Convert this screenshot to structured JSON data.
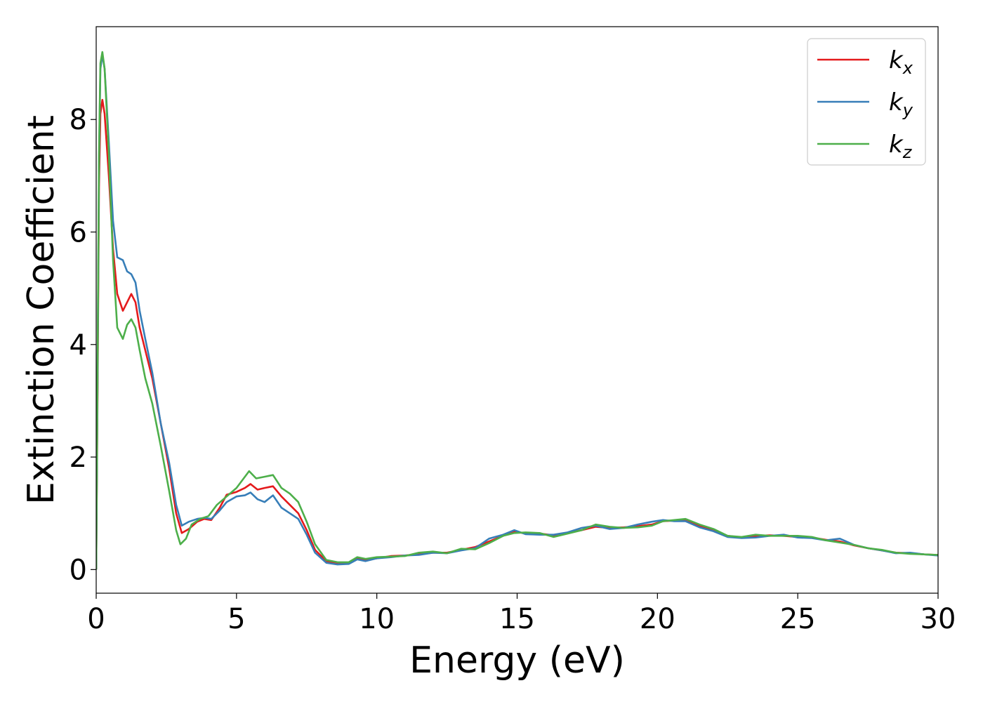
{
  "chart_data": {
    "type": "line",
    "title": "",
    "xlabel": "Energy (eV)",
    "ylabel": "Extinction Coefficient",
    "xlim": [
      0,
      30
    ],
    "ylim": [
      -0.42,
      9.65
    ],
    "xticks": [
      0,
      5,
      10,
      15,
      20,
      25,
      30
    ],
    "yticks": [
      0,
      2,
      4,
      6,
      8
    ],
    "grid": false,
    "legend_position": "top-right",
    "series": [
      {
        "name": "k",
        "subscript": "x",
        "color": "#e41a1c",
        "points": [
          [
            0,
            0
          ],
          [
            0.05,
            3.2
          ],
          [
            0.1,
            6.8
          ],
          [
            0.15,
            8.1
          ],
          [
            0.22,
            8.35
          ],
          [
            0.3,
            8.1
          ],
          [
            0.45,
            7.0
          ],
          [
            0.6,
            5.7
          ],
          [
            0.75,
            4.9
          ],
          [
            0.95,
            4.6
          ],
          [
            1.1,
            4.75
          ],
          [
            1.25,
            4.9
          ],
          [
            1.4,
            4.75
          ],
          [
            1.55,
            4.3
          ],
          [
            1.75,
            3.9
          ],
          [
            2.0,
            3.4
          ],
          [
            2.3,
            2.6
          ],
          [
            2.6,
            1.8
          ],
          [
            2.85,
            1.0
          ],
          [
            3.05,
            0.65
          ],
          [
            3.3,
            0.72
          ],
          [
            3.6,
            0.85
          ],
          [
            3.85,
            0.9
          ],
          [
            4.1,
            0.88
          ],
          [
            4.4,
            1.1
          ],
          [
            4.65,
            1.33
          ],
          [
            5.0,
            1.38
          ],
          [
            5.3,
            1.45
          ],
          [
            5.5,
            1.52
          ],
          [
            5.75,
            1.42
          ],
          [
            6.0,
            1.45
          ],
          [
            6.3,
            1.48
          ],
          [
            6.6,
            1.3
          ],
          [
            6.9,
            1.15
          ],
          [
            7.2,
            1.0
          ],
          [
            7.5,
            0.7
          ],
          [
            7.8,
            0.35
          ],
          [
            8.2,
            0.15
          ],
          [
            8.6,
            0.11
          ],
          [
            9.0,
            0.12
          ],
          [
            9.3,
            0.2
          ],
          [
            9.6,
            0.17
          ],
          [
            10.0,
            0.2
          ],
          [
            10.5,
            0.24
          ],
          [
            11.0,
            0.25
          ],
          [
            11.5,
            0.27
          ],
          [
            12.0,
            0.3
          ],
          [
            12.5,
            0.3
          ],
          [
            13.0,
            0.35
          ],
          [
            13.5,
            0.4
          ],
          [
            14.0,
            0.5
          ],
          [
            14.5,
            0.6
          ],
          [
            14.9,
            0.68
          ],
          [
            15.3,
            0.64
          ],
          [
            15.8,
            0.64
          ],
          [
            16.3,
            0.61
          ],
          [
            16.8,
            0.65
          ],
          [
            17.3,
            0.7
          ],
          [
            17.8,
            0.76
          ],
          [
            18.3,
            0.74
          ],
          [
            18.8,
            0.75
          ],
          [
            19.3,
            0.77
          ],
          [
            19.8,
            0.8
          ],
          [
            20.2,
            0.86
          ],
          [
            20.6,
            0.87
          ],
          [
            21.0,
            0.88
          ],
          [
            21.5,
            0.78
          ],
          [
            22.0,
            0.7
          ],
          [
            22.5,
            0.6
          ],
          [
            23.0,
            0.57
          ],
          [
            23.5,
            0.6
          ],
          [
            24.0,
            0.61
          ],
          [
            24.5,
            0.6
          ],
          [
            25.0,
            0.58
          ],
          [
            25.5,
            0.57
          ],
          [
            26.0,
            0.53
          ],
          [
            26.5,
            0.5
          ],
          [
            27.0,
            0.43
          ],
          [
            27.5,
            0.38
          ],
          [
            28.0,
            0.34
          ],
          [
            28.5,
            0.3
          ],
          [
            29.0,
            0.29
          ],
          [
            29.5,
            0.27
          ],
          [
            30.0,
            0.26
          ]
        ]
      },
      {
        "name": "k",
        "subscript": "y",
        "color": "#377eb8",
        "points": [
          [
            0,
            0
          ],
          [
            0.05,
            3.5
          ],
          [
            0.1,
            7.2
          ],
          [
            0.15,
            8.9
          ],
          [
            0.22,
            9.15
          ],
          [
            0.3,
            8.9
          ],
          [
            0.45,
            7.6
          ],
          [
            0.6,
            6.2
          ],
          [
            0.75,
            5.55
          ],
          [
            0.95,
            5.5
          ],
          [
            1.1,
            5.3
          ],
          [
            1.25,
            5.25
          ],
          [
            1.4,
            5.1
          ],
          [
            1.55,
            4.6
          ],
          [
            1.75,
            4.1
          ],
          [
            2.0,
            3.5
          ],
          [
            2.3,
            2.6
          ],
          [
            2.6,
            1.9
          ],
          [
            2.85,
            1.15
          ],
          [
            3.05,
            0.78
          ],
          [
            3.3,
            0.85
          ],
          [
            3.6,
            0.9
          ],
          [
            3.85,
            0.92
          ],
          [
            4.1,
            0.9
          ],
          [
            4.4,
            1.05
          ],
          [
            4.65,
            1.2
          ],
          [
            5.0,
            1.3
          ],
          [
            5.3,
            1.32
          ],
          [
            5.5,
            1.37
          ],
          [
            5.75,
            1.25
          ],
          [
            6.0,
            1.2
          ],
          [
            6.3,
            1.32
          ],
          [
            6.6,
            1.1
          ],
          [
            6.9,
            1.0
          ],
          [
            7.2,
            0.9
          ],
          [
            7.5,
            0.62
          ],
          [
            7.8,
            0.3
          ],
          [
            8.2,
            0.12
          ],
          [
            8.6,
            0.09
          ],
          [
            9.0,
            0.1
          ],
          [
            9.3,
            0.18
          ],
          [
            9.6,
            0.15
          ],
          [
            10.0,
            0.2
          ],
          [
            10.5,
            0.22
          ],
          [
            11.0,
            0.25
          ],
          [
            11.5,
            0.26
          ],
          [
            12.0,
            0.3
          ],
          [
            12.5,
            0.29
          ],
          [
            13.0,
            0.34
          ],
          [
            13.5,
            0.38
          ],
          [
            14.0,
            0.55
          ],
          [
            14.5,
            0.62
          ],
          [
            14.9,
            0.7
          ],
          [
            15.3,
            0.63
          ],
          [
            15.8,
            0.62
          ],
          [
            16.3,
            0.62
          ],
          [
            16.8,
            0.66
          ],
          [
            17.3,
            0.74
          ],
          [
            17.8,
            0.78
          ],
          [
            18.3,
            0.72
          ],
          [
            18.8,
            0.74
          ],
          [
            19.3,
            0.8
          ],
          [
            19.8,
            0.85
          ],
          [
            20.2,
            0.88
          ],
          [
            20.6,
            0.86
          ],
          [
            21.0,
            0.86
          ],
          [
            21.5,
            0.75
          ],
          [
            22.0,
            0.68
          ],
          [
            22.5,
            0.58
          ],
          [
            23.0,
            0.56
          ],
          [
            23.5,
            0.57
          ],
          [
            24.0,
            0.6
          ],
          [
            24.5,
            0.62
          ],
          [
            25.0,
            0.57
          ],
          [
            25.5,
            0.56
          ],
          [
            26.0,
            0.52
          ],
          [
            26.5,
            0.55
          ],
          [
            27.0,
            0.44
          ],
          [
            27.5,
            0.38
          ],
          [
            28.0,
            0.34
          ],
          [
            28.5,
            0.29
          ],
          [
            29.0,
            0.3
          ],
          [
            29.5,
            0.27
          ],
          [
            30.0,
            0.25
          ]
        ]
      },
      {
        "name": "k",
        "subscript": "z",
        "color": "#4daf4a",
        "points": [
          [
            0,
            0
          ],
          [
            0.05,
            3.6
          ],
          [
            0.1,
            7.4
          ],
          [
            0.15,
            9.0
          ],
          [
            0.22,
            9.2
          ],
          [
            0.3,
            8.9
          ],
          [
            0.45,
            7.4
          ],
          [
            0.6,
            5.5
          ],
          [
            0.75,
            4.3
          ],
          [
            0.95,
            4.1
          ],
          [
            1.1,
            4.35
          ],
          [
            1.25,
            4.45
          ],
          [
            1.4,
            4.3
          ],
          [
            1.55,
            3.9
          ],
          [
            1.75,
            3.4
          ],
          [
            2.0,
            2.95
          ],
          [
            2.3,
            2.2
          ],
          [
            2.6,
            1.4
          ],
          [
            2.85,
            0.7
          ],
          [
            3.0,
            0.45
          ],
          [
            3.2,
            0.55
          ],
          [
            3.4,
            0.8
          ],
          [
            3.7,
            0.9
          ],
          [
            4.0,
            0.95
          ],
          [
            4.3,
            1.15
          ],
          [
            4.65,
            1.3
          ],
          [
            5.0,
            1.45
          ],
          [
            5.3,
            1.65
          ],
          [
            5.45,
            1.75
          ],
          [
            5.7,
            1.62
          ],
          [
            6.0,
            1.65
          ],
          [
            6.3,
            1.68
          ],
          [
            6.6,
            1.45
          ],
          [
            6.9,
            1.35
          ],
          [
            7.2,
            1.2
          ],
          [
            7.5,
            0.85
          ],
          [
            7.8,
            0.45
          ],
          [
            8.2,
            0.17
          ],
          [
            8.6,
            0.13
          ],
          [
            9.0,
            0.13
          ],
          [
            9.3,
            0.22
          ],
          [
            9.6,
            0.19
          ],
          [
            10.0,
            0.22
          ],
          [
            10.5,
            0.23
          ],
          [
            11.0,
            0.24
          ],
          [
            11.5,
            0.3
          ],
          [
            12.0,
            0.32
          ],
          [
            12.5,
            0.29
          ],
          [
            13.0,
            0.37
          ],
          [
            13.5,
            0.36
          ],
          [
            14.0,
            0.47
          ],
          [
            14.5,
            0.6
          ],
          [
            14.9,
            0.65
          ],
          [
            15.3,
            0.66
          ],
          [
            15.8,
            0.65
          ],
          [
            16.3,
            0.58
          ],
          [
            16.8,
            0.64
          ],
          [
            17.3,
            0.7
          ],
          [
            17.8,
            0.8
          ],
          [
            18.3,
            0.76
          ],
          [
            18.8,
            0.74
          ],
          [
            19.3,
            0.75
          ],
          [
            19.8,
            0.78
          ],
          [
            20.2,
            0.86
          ],
          [
            20.6,
            0.88
          ],
          [
            21.0,
            0.9
          ],
          [
            21.5,
            0.8
          ],
          [
            22.0,
            0.72
          ],
          [
            22.5,
            0.6
          ],
          [
            23.0,
            0.58
          ],
          [
            23.5,
            0.62
          ],
          [
            24.0,
            0.6
          ],
          [
            24.5,
            0.6
          ],
          [
            25.0,
            0.6
          ],
          [
            25.5,
            0.58
          ],
          [
            26.0,
            0.52
          ],
          [
            26.5,
            0.48
          ],
          [
            27.0,
            0.44
          ],
          [
            27.5,
            0.38
          ],
          [
            28.0,
            0.35
          ],
          [
            28.5,
            0.3
          ],
          [
            29.0,
            0.28
          ],
          [
            29.5,
            0.27
          ],
          [
            30.0,
            0.26
          ]
        ]
      }
    ]
  }
}
